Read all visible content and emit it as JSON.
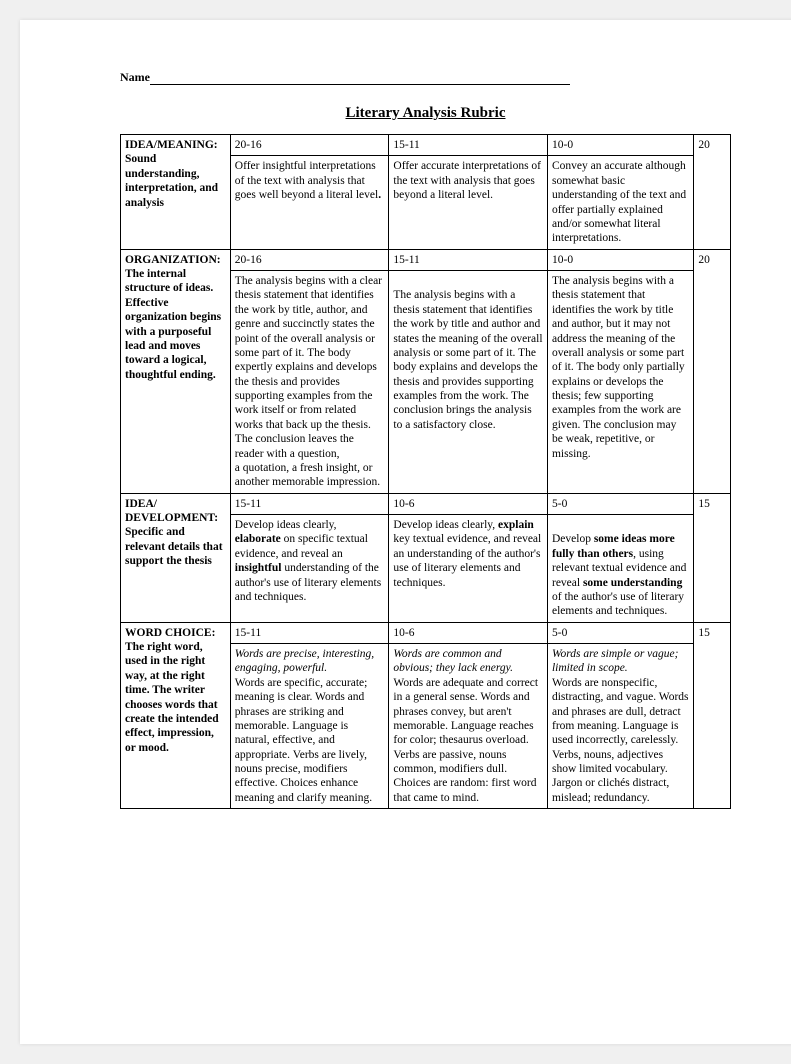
{
  "name_label": "Name",
  "title": "Literary Analysis Rubric",
  "rows": [
    {
      "scores": [
        "20-16",
        "15-11",
        "10-0",
        "20"
      ],
      "cat_html": "<span class=\"b\">IDEA/MEANING: Sound understanding, interpretation, and analysis</span>",
      "c1_html": "Offer insightful interpretations of the text with analysis that goes well beyond a literal level<span class=\"b\">.</span>",
      "c2_html": "Offer accurate interpretations of the text with analysis that goes beyond a literal level.",
      "c3_html": "Convey an accurate although somewhat basic understanding of the text and offer partially explained and/or somewhat literal interpretations."
    },
    {
      "scores": [
        "20-16",
        "15-11",
        "10-0",
        "20"
      ],
      "cat_html": "<span class=\"b\">ORGANIZATION: The internal structure of ideas. Effective organization begins with a purposeful lead and moves toward a logical, thoughtful ending.</span>",
      "c1_html": "The analysis begins with a clear thesis statement that identifies the work by title, author, and genre and succinctly states the point of the overall analysis or some part of it. The body expertly explains and develops the thesis and provides supporting examples from the work itself or from related works that back up the thesis. The conclusion leaves the<br>reader with a question,<br>a quotation, a fresh insight, or another memorable impression.",
      "c2_html": "<br>The analysis begins with a thesis statement that identifies the work by title and author and states the meaning of the overall analysis or some part of it. The body explains and develops the thesis and provides supporting examples from the work. The conclusion brings the analysis to a satisfactory close.",
      "c3_html": "The analysis begins with a thesis statement that identifies the work by title and author, but it may not address the meaning of the overall analysis or some part of it. The body only partially explains or develops the thesis; few supporting examples from the work are given. The conclusion may be weak, repetitive, or missing."
    },
    {
      "scores": [
        "15-11",
        "10-6",
        "5-0",
        "15"
      ],
      "cat_html": "<span class=\"b\">IDEA/ DEVELOPMENT: Specific and relevant details that support the thesis</span>",
      "c1_html": "Develop ideas clearly, <span class=\"b\">elaborate</span> on specific textual evidence, and reveal an <span class=\"b\">insightful</span> understanding of the author's use of literary elements and techniques.",
      "c2_html": "Develop ideas clearly, <span class=\"b\">explain</span> key textual evidence, and reveal an understanding of the author's use of literary elements and techniques.",
      "c3_html": "<br>Develop <span class=\"b\">some ideas more fully than others</span>, using relevant textual evidence and reveal <span class=\"b\">some understanding</span> of the author's use of literary elements and techniques."
    },
    {
      "scores": [
        "15-11",
        "10-6",
        "5-0",
        "15"
      ],
      "cat_html": "<span class=\"b\">WORD CHOICE: The right word, used in the right way, at the right time. The writer chooses words that create the intended effect, impression, or mood.</span>",
      "c1_html": "<span class=\"i\">Words are precise, interesting, engaging, powerful.</span><br>Words are specific, accurate; meaning is clear. Words and phrases are striking and memorable. Language is natural, effective, and appropriate. Verbs are lively, nouns precise, modifiers effective. Choices enhance meaning and clarify meaning.",
      "c2_html": "<span class=\"i\">Words are common and obvious; they lack energy.</span><br>Words are adequate and correct in a general sense. Words and phrases convey, but aren't memorable. Language reaches for color; thesaurus overload.<br>Verbs are passive, nouns common, modifiers dull. Choices are random: first word that came to mind.",
      "c3_html": "<span class=\"i\">Words are simple or vague; limited in scope.</span><br>Words are nonspecific, distracting, and vague. Words and phrases are dull, detract from meaning. Language is used incorrectly, carelessly. Verbs, nouns, adjectives show limited vocabulary. Jargon or clichés distract, mislead; redundancy."
    }
  ]
}
